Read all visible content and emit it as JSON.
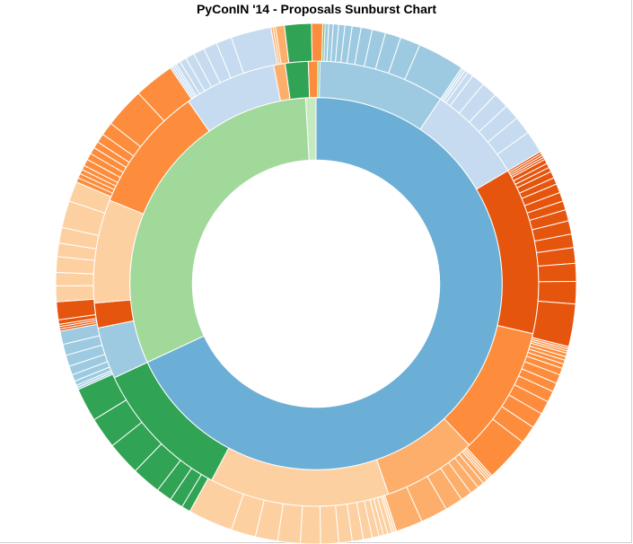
{
  "chart_data": {
    "type": "sunburst",
    "title": "PyConIN '14 - Proposals Sunburst Chart",
    "start_angle_deg": 0,
    "rings": [
      {
        "level": 1,
        "segments": [
          {
            "span": 245,
            "color": "#6baed6"
          },
          {
            "span": 111.8,
            "color": "#a1d99b"
          },
          {
            "span": 3.2,
            "color": "#c7e9c0"
          }
        ]
      },
      {
        "level": 2,
        "segments": [
          {
            "span": 34,
            "color": "#9ecae1"
          },
          {
            "span": 25.5,
            "color": "#c6dbef"
          },
          {
            "span": 43.5,
            "color": "#e6550d"
          },
          {
            "span": 33.5,
            "color": "#fd8d3c"
          },
          {
            "span": 24.5,
            "color": "#fdae6b"
          },
          {
            "span": 47,
            "color": "#fdd0a2"
          },
          {
            "span": 37,
            "color": "#31a354"
          },
          {
            "span": 13.5,
            "color": "#9ecae1"
          },
          {
            "span": 6.5,
            "color": "#e6550d"
          },
          {
            "span": 27,
            "color": "#fdd0a2"
          },
          {
            "span": 33,
            "color": "#fd8d3c"
          },
          {
            "span": 24,
            "color": "#c6dbef"
          },
          {
            "span": 3,
            "color": "#fdae6b"
          },
          {
            "span": 6,
            "color": "#31a354"
          },
          {
            "span": 2.5,
            "color": "#fd8d3c"
          },
          {
            "span": 0.5,
            "color": "#74c476"
          }
        ]
      },
      {
        "level": 3,
        "segments": [
          {
            "span": 0.6,
            "color": "#9ecae1"
          },
          {
            "span": 0.6,
            "color": "#9ecae1"
          },
          {
            "span": 0.6,
            "color": "#9ecae1"
          },
          {
            "span": 1.0,
            "color": "#9ecae1"
          },
          {
            "span": 1.0,
            "color": "#9ecae1"
          },
          {
            "span": 1.2,
            "color": "#9ecae1"
          },
          {
            "span": 1.4,
            "color": "#9ecae1"
          },
          {
            "span": 1.6,
            "color": "#9ecae1"
          },
          {
            "span": 2.0,
            "color": "#9ecae1"
          },
          {
            "span": 2.5,
            "color": "#9ecae1"
          },
          {
            "span": 3.0,
            "color": "#9ecae1"
          },
          {
            "span": 3.5,
            "color": "#9ecae1"
          },
          {
            "span": 4.5,
            "color": "#9ecae1"
          },
          {
            "span": 10.5,
            "color": "#9ecae1"
          },
          {
            "span": 0.5,
            "color": "#c6dbef"
          },
          {
            "span": 0.5,
            "color": "#c6dbef"
          },
          {
            "span": 0.7,
            "color": "#c6dbef"
          },
          {
            "span": 1.3,
            "color": "#c6dbef"
          },
          {
            "span": 3.0,
            "color": "#c6dbef"
          },
          {
            "span": 3.5,
            "color": "#c6dbef"
          },
          {
            "span": 3.5,
            "color": "#c6dbef"
          },
          {
            "span": 3.5,
            "color": "#c6dbef"
          },
          {
            "span": 4.0,
            "color": "#c6dbef"
          },
          {
            "span": 5.0,
            "color": "#c6dbef"
          },
          {
            "span": 0.5,
            "color": "#e6550d"
          },
          {
            "span": 0.5,
            "color": "#e6550d"
          },
          {
            "span": 0.5,
            "color": "#e6550d"
          },
          {
            "span": 0.5,
            "color": "#e6550d"
          },
          {
            "span": 1.0,
            "color": "#e6550d"
          },
          {
            "span": 1.0,
            "color": "#e6550d"
          },
          {
            "span": 1.0,
            "color": "#e6550d"
          },
          {
            "span": 1.5,
            "color": "#e6550d"
          },
          {
            "span": 1.5,
            "color": "#e6550d"
          },
          {
            "span": 2.0,
            "color": "#e6550d"
          },
          {
            "span": 2.0,
            "color": "#e6550d"
          },
          {
            "span": 2.0,
            "color": "#e6550d"
          },
          {
            "span": 2.5,
            "color": "#e6550d"
          },
          {
            "span": 3.0,
            "color": "#e6550d"
          },
          {
            "span": 3.0,
            "color": "#e6550d"
          },
          {
            "span": 3.5,
            "color": "#e6550d"
          },
          {
            "span": 4.0,
            "color": "#e6550d"
          },
          {
            "span": 5.0,
            "color": "#e6550d"
          },
          {
            "span": 9.5,
            "color": "#e6550d"
          },
          {
            "span": 0.5,
            "color": "#fd8d3c"
          },
          {
            "span": 0.5,
            "color": "#fd8d3c"
          },
          {
            "span": 0.5,
            "color": "#fd8d3c"
          },
          {
            "span": 0.8,
            "color": "#fd8d3c"
          },
          {
            "span": 0.8,
            "color": "#fd8d3c"
          },
          {
            "span": 0.9,
            "color": "#fd8d3c"
          },
          {
            "span": 1.0,
            "color": "#fd8d3c"
          },
          {
            "span": 1.5,
            "color": "#fd8d3c"
          },
          {
            "span": 2.0,
            "color": "#fd8d3c"
          },
          {
            "span": 2.0,
            "color": "#fd8d3c"
          },
          {
            "span": 2.5,
            "color": "#fd8d3c"
          },
          {
            "span": 3.0,
            "color": "#fd8d3c"
          },
          {
            "span": 3.5,
            "color": "#fd8d3c"
          },
          {
            "span": 4.0,
            "color": "#fd8d3c"
          },
          {
            "span": 10.0,
            "color": "#fd8d3c"
          },
          {
            "span": 0.5,
            "color": "#fdae6b"
          },
          {
            "span": 0.5,
            "color": "#fdae6b"
          },
          {
            "span": 0.5,
            "color": "#fdae6b"
          },
          {
            "span": 1.0,
            "color": "#fdae6b"
          },
          {
            "span": 1.5,
            "color": "#fdae6b"
          },
          {
            "span": 2.0,
            "color": "#fdae6b"
          },
          {
            "span": 2.5,
            "color": "#fdae6b"
          },
          {
            "span": 4.0,
            "color": "#fdae6b"
          },
          {
            "span": 6.0,
            "color": "#fdae6b"
          },
          {
            "span": 6.0,
            "color": "#fdae6b"
          },
          {
            "span": 0.5,
            "color": "#fdd0a2"
          },
          {
            "span": 0.5,
            "color": "#fdd0a2"
          },
          {
            "span": 1.0,
            "color": "#fdd0a2"
          },
          {
            "span": 1.0,
            "color": "#fdd0a2"
          },
          {
            "span": 1.0,
            "color": "#fdd0a2"
          },
          {
            "span": 1.5,
            "color": "#fdd0a2"
          },
          {
            "span": 2.0,
            "color": "#fdd0a2"
          },
          {
            "span": 2.5,
            "color": "#fdd0a2"
          },
          {
            "span": 3.0,
            "color": "#fdd0a2"
          },
          {
            "span": 4.0,
            "color": "#fdd0a2"
          },
          {
            "span": 4.5,
            "color": "#fdd0a2"
          },
          {
            "span": 5.0,
            "color": "#fdd0a2"
          },
          {
            "span": 5.0,
            "color": "#fdd0a2"
          },
          {
            "span": 5.5,
            "color": "#fdd0a2"
          },
          {
            "span": 10.0,
            "color": "#fdd0a2"
          },
          {
            "span": 2.0,
            "color": "#31a354"
          },
          {
            "span": 3.0,
            "color": "#31a354"
          },
          {
            "span": 3.5,
            "color": "#31a354"
          },
          {
            "span": 6.5,
            "color": "#31a354"
          },
          {
            "span": 7.5,
            "color": "#31a354"
          },
          {
            "span": 7.0,
            "color": "#31a354"
          },
          {
            "span": 7.5,
            "color": "#31a354"
          },
          {
            "span": 0.5,
            "color": "#9ecae1"
          },
          {
            "span": 0.5,
            "color": "#9ecae1"
          },
          {
            "span": 1.0,
            "color": "#9ecae1"
          },
          {
            "span": 1.5,
            "color": "#9ecae1"
          },
          {
            "span": 2.0,
            "color": "#9ecae1"
          },
          {
            "span": 2.5,
            "color": "#9ecae1"
          },
          {
            "span": 2.5,
            "color": "#9ecae1"
          },
          {
            "span": 3.0,
            "color": "#9ecae1"
          },
          {
            "span": 0.5,
            "color": "#e6550d"
          },
          {
            "span": 0.5,
            "color": "#e6550d"
          },
          {
            "span": 0.5,
            "color": "#e6550d"
          },
          {
            "span": 1.0,
            "color": "#e6550d"
          },
          {
            "span": 4.0,
            "color": "#e6550d"
          },
          {
            "span": 3.5,
            "color": "#fdd0a2"
          },
          {
            "span": 3.0,
            "color": "#fdd0a2"
          },
          {
            "span": 3.5,
            "color": "#fdd0a2"
          },
          {
            "span": 3.0,
            "color": "#fdd0a2"
          },
          {
            "span": 3.5,
            "color": "#fdd0a2"
          },
          {
            "span": 6.0,
            "color": "#fdd0a2"
          },
          {
            "span": 4.5,
            "color": "#fdd0a2"
          },
          {
            "span": 1.0,
            "color": "#fd8d3c"
          },
          {
            "span": 1.0,
            "color": "#fd8d3c"
          },
          {
            "span": 1.0,
            "color": "#fd8d3c"
          },
          {
            "span": 1.0,
            "color": "#fd8d3c"
          },
          {
            "span": 1.5,
            "color": "#fd8d3c"
          },
          {
            "span": 1.5,
            "color": "#fd8d3c"
          },
          {
            "span": 1.5,
            "color": "#fd8d3c"
          },
          {
            "span": 1.5,
            "color": "#fd8d3c"
          },
          {
            "span": 2.0,
            "color": "#fd8d3c"
          },
          {
            "span": 3.0,
            "color": "#fd8d3c"
          },
          {
            "span": 9.0,
            "color": "#fd8d3c"
          },
          {
            "span": 9.0,
            "color": "#fd8d3c"
          },
          {
            "span": 0.5,
            "color": "#c6dbef"
          },
          {
            "span": 0.5,
            "color": "#c6dbef"
          },
          {
            "span": 0.5,
            "color": "#c6dbef"
          },
          {
            "span": 1.0,
            "color": "#c6dbef"
          },
          {
            "span": 1.5,
            "color": "#c6dbef"
          },
          {
            "span": 2.0,
            "color": "#c6dbef"
          },
          {
            "span": 2.5,
            "color": "#c6dbef"
          },
          {
            "span": 3.0,
            "color": "#c6dbef"
          },
          {
            "span": 3.5,
            "color": "#c6dbef"
          },
          {
            "span": 9.0,
            "color": "#c6dbef"
          },
          {
            "span": 0.5,
            "color": "#fdae6b"
          },
          {
            "span": 0.5,
            "color": "#fdae6b"
          },
          {
            "span": 2.0,
            "color": "#fdae6b"
          },
          {
            "span": 6.0,
            "color": "#31a354"
          },
          {
            "span": 2.5,
            "color": "#fd8d3c"
          },
          {
            "span": 0.5,
            "color": "#74c476"
          }
        ]
      }
    ],
    "rings_radii_fraction": [
      [
        0.475,
        0.715
      ],
      [
        0.715,
        0.855
      ],
      [
        0.855,
        1.0
      ]
    ]
  }
}
